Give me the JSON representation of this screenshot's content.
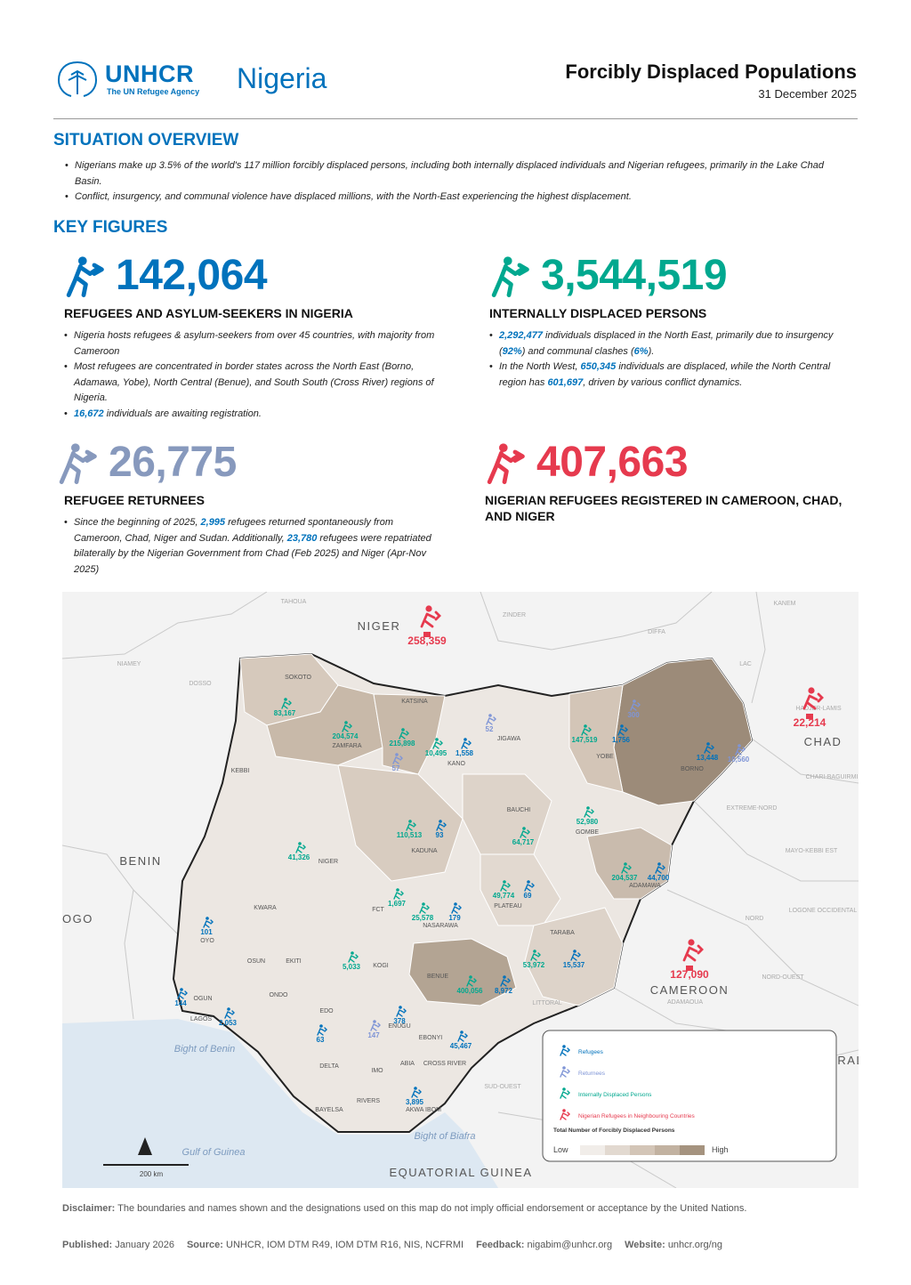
{
  "header": {
    "org": "UNHCR",
    "tagline": "The UN Refugee Agency",
    "country": "Nigeria",
    "title": "Forcibly Displaced Populations",
    "date": "31 December 2025"
  },
  "overview": {
    "heading": "SITUATION OVERVIEW",
    "bullets": [
      "Nigerians make up 3.5% of the world's 117 million forcibly displaced persons, including both internally displaced individuals and Nigerian refugees, primarily in the Lake Chad Basin.",
      "Conflict, insurgency, and communal violence have displaced millions, with the North-East experiencing the highest displacement."
    ]
  },
  "key_figures": {
    "heading": "KEY FIGURES",
    "items": [
      {
        "value": "142,064",
        "color": "#0072bc",
        "label": "REFUGEES AND ASYLUM-SEEKERS IN NIGERIA",
        "bullets": [
          [
            "Nigeria hosts refugees & asylum-seekers from over 45 countries, with majority from Cameroon"
          ],
          [
            "Most refugees are concentrated in border states across the North East (Borno, Adamawa, Yobe), North Central (Benue), and South South (Cross River) regions of Nigeria."
          ],
          [
            {
              "highlight": "16,672"
            },
            " individuals are awaiting registration."
          ]
        ]
      },
      {
        "value": "3,544,519",
        "color": "#00a88f",
        "label": "INTERNALLY DISPLACED PERSONS",
        "bullets": [
          [
            {
              "highlight": "2,292,477"
            },
            " individuals displaced in the North East, primarily due to insurgency (",
            {
              "highlight": "92%"
            },
            ") and communal clashes (",
            {
              "highlight": "6%"
            },
            ")."
          ],
          [
            "In the North West, ",
            {
              "highlight": "650,345"
            },
            " individuals are displaced, while the North Central region has ",
            {
              "highlight": "601,697"
            },
            ", driven by various conflict dynamics."
          ]
        ]
      },
      {
        "value": "26,775",
        "color": "#8799bd",
        "label": "REFUGEE RETURNEES",
        "bullets": [
          [
            "Since the beginning of 2025, ",
            {
              "highlight": "2,995"
            },
            " refugees returned spontaneously from Cameroon, Chad, Niger and Sudan. Additionally, ",
            {
              "highlight": "23,780"
            },
            " refugees were repatriated bilaterally by the Nigerian Government from Chad (Feb 2025) and Niger (Apr-Nov 2025)"
          ]
        ]
      },
      {
        "value": "407,663",
        "color": "#e63a4e",
        "label": "NIGERIAN REFUGEES REGISTERED IN CAMEROON, CHAD, AND NIGER",
        "bullets": []
      }
    ]
  },
  "map": {
    "countries": [
      {
        "name": "NIGER",
        "value": "258,359"
      },
      {
        "name": "CHAD",
        "value": "22,214"
      },
      {
        "name": "CAMEROON",
        "value": "127,090"
      },
      {
        "name": "BENIN"
      },
      {
        "name": "OGO"
      },
      {
        "name": "CENTRAL AFRICAN REPUBLIC"
      },
      {
        "name": "EQUATORIAL GUINEA"
      }
    ],
    "places": [
      "TAHOUA",
      "ZINDER",
      "DIFFA",
      "NIAMEY",
      "DOSSO",
      "KANEM",
      "LAC",
      "HADJER-LAMIS",
      "CHARI-BAGUIRMI",
      "EXTREME-NORD",
      "MAYO-KEBBI EST",
      "NORD",
      "LOGONE OCCIDENTAL",
      "ADAMAOUA",
      "NORD-OUEST",
      "SUD-OUEST",
      "LITTORAL"
    ],
    "waters": [
      "Bight of Benin",
      "Gulf of Guinea",
      "Bight of Biafra"
    ],
    "states": [
      {
        "name": "SOKOTO",
        "figures": [
          {
            "value": "83,167",
            "type": "idp"
          }
        ]
      },
      {
        "name": "ZAMFARA",
        "figures": [
          {
            "value": "204,574",
            "type": "idp"
          }
        ]
      },
      {
        "name": "KATSINA",
        "figures": [
          {
            "value": "215,898",
            "type": "idp"
          },
          {
            "value": "57",
            "type": "returnees"
          }
        ]
      },
      {
        "name": "KANO",
        "figures": [
          {
            "value": "10,495",
            "type": "idp"
          },
          {
            "value": "1,558",
            "type": "refugees"
          }
        ]
      },
      {
        "name": "JIGAWA",
        "figures": [
          {
            "value": "52",
            "type": "returnees"
          }
        ]
      },
      {
        "name": "YOBE",
        "figures": [
          {
            "value": "147,519",
            "type": "idp"
          },
          {
            "value": "1,756",
            "type": "refugees"
          },
          {
            "value": "300",
            "type": "returnees"
          }
        ]
      },
      {
        "name": "BORNO",
        "figures": [
          {
            "value": "13,448",
            "type": "refugees"
          },
          {
            "value": "10,560",
            "type": "returnees"
          }
        ]
      },
      {
        "name": "KEBBI",
        "figures": []
      },
      {
        "name": "BAUCHI",
        "figures": [
          {
            "value": "64,717",
            "type": "idp"
          }
        ]
      },
      {
        "name": "GOMBE",
        "figures": [
          {
            "value": "52,980",
            "type": "idp"
          }
        ]
      },
      {
        "name": "KADUNA",
        "figures": [
          {
            "value": "110,513",
            "type": "idp"
          },
          {
            "value": "93",
            "type": "refugees"
          }
        ]
      },
      {
        "name": "NIGER",
        "figures": [
          {
            "value": "41,326",
            "type": "idp"
          }
        ]
      },
      {
        "name": "ADAMAWA",
        "figures": [
          {
            "value": "204,537",
            "type": "idp"
          },
          {
            "value": "44,700",
            "type": "refugees"
          }
        ]
      },
      {
        "name": "PLATEAU",
        "figures": [
          {
            "value": "49,774",
            "type": "idp"
          },
          {
            "value": "69",
            "type": "refugees"
          }
        ]
      },
      {
        "name": "FCT",
        "figures": [
          {
            "value": "1,697",
            "type": "idp"
          }
        ]
      },
      {
        "name": "NASARAWA",
        "figures": [
          {
            "value": "25,578",
            "type": "idp"
          },
          {
            "value": "179",
            "type": "refugees"
          }
        ]
      },
      {
        "name": "TARABA",
        "figures": [
          {
            "value": "53,972",
            "type": "idp"
          },
          {
            "value": "15,537",
            "type": "refugees"
          }
        ]
      },
      {
        "name": "BENUE",
        "figures": [
          {
            "value": "400,056",
            "type": "idp"
          },
          {
            "value": "8,972",
            "type": "refugees"
          }
        ]
      },
      {
        "name": "KWARA",
        "figures": []
      },
      {
        "name": "OYO",
        "figures": [
          {
            "value": "101",
            "type": "refugees"
          }
        ]
      },
      {
        "name": "OGUN",
        "figures": [
          {
            "value": "144",
            "type": "refugees"
          }
        ]
      },
      {
        "name": "LAGOS",
        "figures": [
          {
            "value": "2,053",
            "type": "refugees"
          }
        ]
      },
      {
        "name": "OSUN",
        "figures": []
      },
      {
        "name": "EKITI",
        "figures": []
      },
      {
        "name": "ONDO",
        "figures": []
      },
      {
        "name": "KOGI",
        "figures": [
          {
            "value": "5,033",
            "type": "idp"
          }
        ]
      },
      {
        "name": "EDO",
        "figures": [
          {
            "value": "63",
            "type": "refugees"
          }
        ]
      },
      {
        "name": "ENUGU",
        "figures": [
          {
            "value": "378",
            "type": "refugees"
          },
          {
            "value": "147",
            "type": "returnees"
          }
        ]
      },
      {
        "name": "EBONYI",
        "figures": []
      },
      {
        "name": "CROSS RIVER",
        "figures": [
          {
            "value": "45,467",
            "type": "refugees"
          }
        ]
      },
      {
        "name": "DELTA",
        "figures": []
      },
      {
        "name": "IMO",
        "figures": []
      },
      {
        "name": "ABIA",
        "figures": []
      },
      {
        "name": "RIVERS",
        "figures": []
      },
      {
        "name": "BAYELSA",
        "figures": []
      },
      {
        "name": "AKWA IBOM",
        "figures": [
          {
            "value": "3,895",
            "type": "refugees"
          }
        ]
      }
    ],
    "legend": {
      "items": [
        {
          "label": "Refugees",
          "type": "refugees"
        },
        {
          "label": "Returnees",
          "type": "returnees"
        },
        {
          "label": "Internally Displaced Persons",
          "type": "idp"
        },
        {
          "label": "Nigerian Refugees in Neighbouring Countries",
          "type": "abroad"
        }
      ],
      "scale_title": "Total Number of Forcibly Displaced Persons",
      "low": "Low",
      "high": "High"
    },
    "scale": "200 km"
  },
  "footer": {
    "disclaimer": {
      "label": "Disclaimer:",
      "text": "The boundaries and names shown and the designations used on this map do not imply official endorsement or acceptance by the United Nations."
    },
    "meta": [
      {
        "label": "Published:",
        "text": "January 2026"
      },
      {
        "label": "Source:",
        "text": "UNHCR, IOM DTM R49, IOM DTM R16, NIS, NCFRMI"
      },
      {
        "label": "Feedback:",
        "text": "nigabim@unhcr.org"
      },
      {
        "label": "Website:",
        "text": "unhcr.org/ng"
      }
    ]
  }
}
